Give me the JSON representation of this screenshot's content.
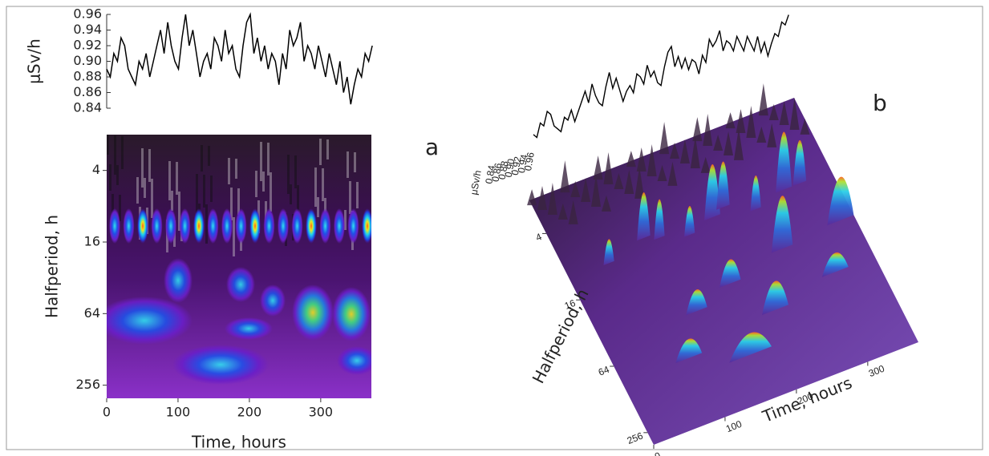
{
  "chart_data": [
    {
      "type": "line",
      "ylabel": "μSv/h",
      "color": "#000000",
      "ylim": [
        0.84,
        0.96
      ],
      "yticks": [
        0.84,
        0.86,
        0.88,
        {
          "value": 0.9,
          "label": "0.90"
        },
        0.92,
        0.94,
        0.96
      ],
      "xlim": [
        0,
        371
      ],
      "x": [
        0,
        5,
        10,
        15,
        20,
        25,
        30,
        35,
        40,
        45,
        50,
        55,
        60,
        65,
        70,
        75,
        80,
        85,
        90,
        95,
        100,
        105,
        110,
        115,
        120,
        125,
        130,
        135,
        140,
        145,
        150,
        155,
        160,
        165,
        170,
        175,
        180,
        185,
        190,
        195,
        200,
        205,
        210,
        215,
        220,
        225,
        230,
        235,
        240,
        245,
        250,
        255,
        260,
        265,
        270,
        275,
        280,
        285,
        290,
        295,
        300,
        305,
        310,
        315,
        320,
        325,
        330,
        335,
        340,
        345,
        350,
        355,
        360,
        365,
        370
      ],
      "values": [
        0.89,
        0.88,
        0.91,
        0.9,
        0.93,
        0.92,
        0.89,
        0.88,
        0.87,
        0.9,
        0.89,
        0.91,
        0.88,
        0.9,
        0.92,
        0.94,
        0.91,
        0.95,
        0.92,
        0.9,
        0.89,
        0.93,
        0.96,
        0.92,
        0.94,
        0.91,
        0.88,
        0.9,
        0.91,
        0.89,
        0.93,
        0.92,
        0.9,
        0.94,
        0.91,
        0.92,
        0.89,
        0.88,
        0.92,
        0.95,
        0.96,
        0.91,
        0.93,
        0.9,
        0.92,
        0.89,
        0.91,
        0.9,
        0.87,
        0.91,
        0.89,
        0.94,
        0.92,
        0.93,
        0.95,
        0.9,
        0.92,
        0.91,
        0.89,
        0.92,
        0.9,
        0.88,
        0.91,
        0.89,
        0.87,
        0.9,
        0.86,
        0.88,
        0.845,
        0.87,
        0.89,
        0.88,
        0.91,
        0.9,
        0.92
      ]
    },
    {
      "type": "heatmap",
      "panel": "a",
      "xlabel": "Time, hours",
      "ylabel": "Halfperiod, h",
      "xlim": [
        0,
        371
      ],
      "xticks": [
        0,
        100,
        200,
        300
      ],
      "ylim": [
        2,
        330
      ],
      "yticks": [
        4,
        16,
        64,
        256
      ],
      "log_y": true
    },
    {
      "type": "surface3d",
      "panel": "b",
      "xlabel": "Time, hours",
      "ylabel": "Halfperiod, h",
      "xlim": [
        0,
        371
      ],
      "xticks": [
        0,
        100,
        200,
        300
      ],
      "ylim": [
        2,
        330
      ],
      "yticks": [
        4,
        16,
        64,
        256
      ],
      "log_y": true,
      "line_ylabel": "μSv/h",
      "line_yticks": [
        0.84,
        0.86,
        0.88,
        {
          "value": 0.9,
          "label": "0.90"
        },
        0.92,
        0.94,
        0.96
      ]
    }
  ]
}
